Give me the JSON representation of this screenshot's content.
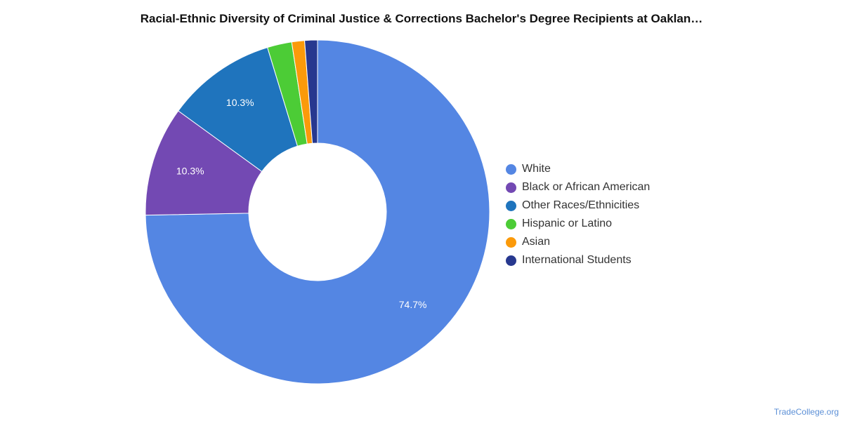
{
  "chart_data": {
    "type": "pie",
    "title": "Racial-Ethnic Diversity of Criminal Justice & Corrections Bachelor's Degree Recipients at Oaklan…",
    "donut": true,
    "legend_position": "right",
    "slices": [
      {
        "name": "White",
        "value": 74.7,
        "label": "74.7%",
        "color": "#5486e3"
      },
      {
        "name": "Black or African American",
        "value": 10.3,
        "label": "10.3%",
        "color": "#7349b3"
      },
      {
        "name": "Other Races/Ethnicities",
        "value": 10.3,
        "label": "10.3%",
        "color": "#1f74bd"
      },
      {
        "name": "Hispanic or Latino",
        "value": 2.3,
        "label": "",
        "color": "#4ccc36"
      },
      {
        "name": "Asian",
        "value": 1.2,
        "label": "",
        "color": "#fb9a0a"
      },
      {
        "name": "International Students",
        "value": 1.2,
        "label": "",
        "color": "#27388f"
      }
    ]
  },
  "source": "TradeCollege.org"
}
